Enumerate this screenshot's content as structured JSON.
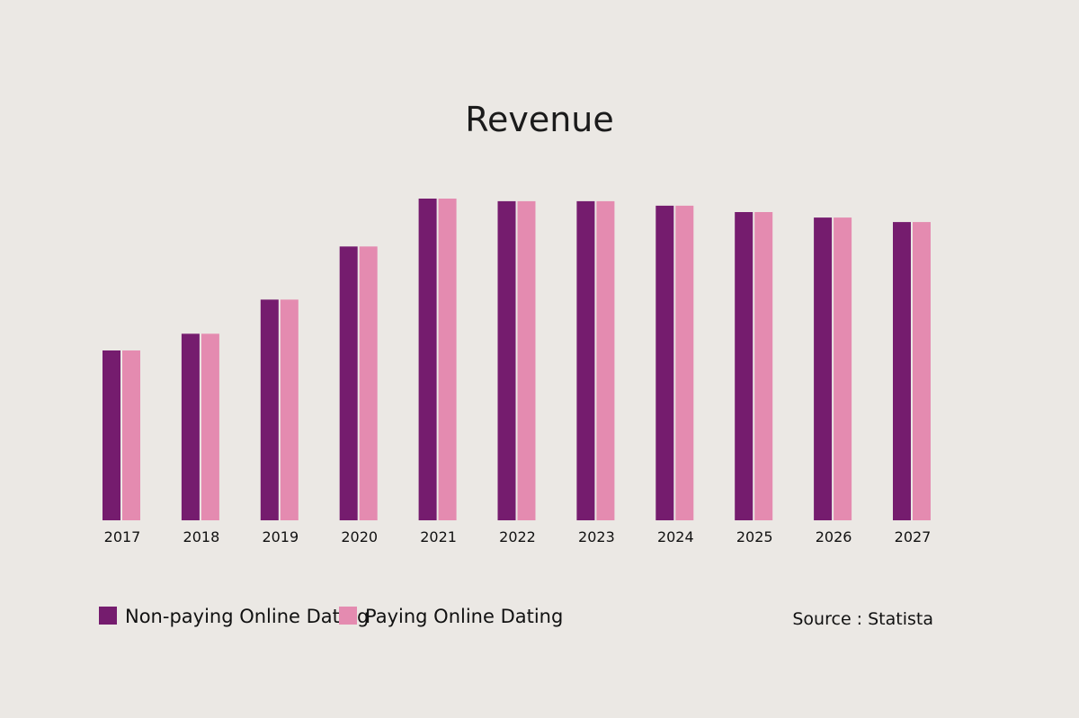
{
  "chart_data": {
    "type": "bar",
    "title": "Revenue",
    "xlabel": "",
    "ylabel": "",
    "ylim": [
      0,
      100
    ],
    "grid": false,
    "legend": "bottom-left",
    "categories": [
      "2017",
      "2018",
      "2019",
      "2020",
      "2021",
      "2022",
      "2023",
      "2024",
      "2025",
      "2026",
      "2027"
    ],
    "series": [
      {
        "name": "Non-paying Online Dating",
        "color": "#751c6e",
        "values": [
          52.8,
          58.0,
          68.6,
          85.1,
          100.0,
          99.2,
          99.2,
          97.8,
          95.8,
          94.1,
          92.7
        ]
      },
      {
        "name": "Paying Online Dating",
        "color": "#e48bb0",
        "values": [
          52.8,
          58.0,
          68.6,
          85.1,
          100.0,
          99.2,
          99.2,
          97.8,
          95.8,
          94.1,
          92.7
        ]
      }
    ],
    "source": "Source : Statista"
  }
}
